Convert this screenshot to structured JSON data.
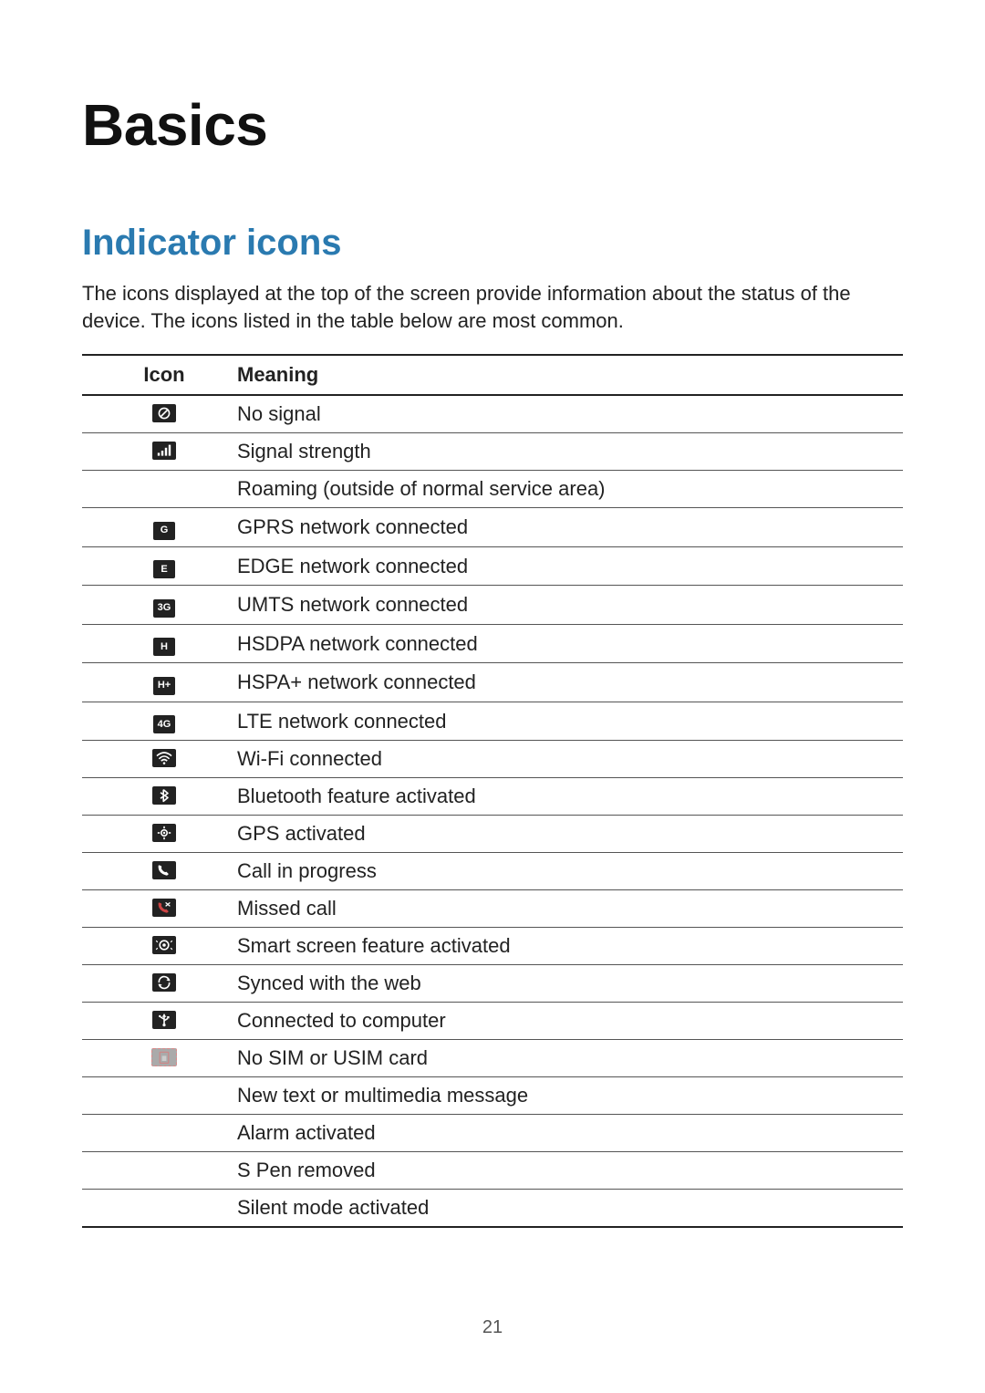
{
  "page_title": "Basics",
  "section_title": "Indicator icons",
  "section_title_color": "#2a7ab0",
  "intro_text": "The icons displayed at the top of the screen provide information about the status of the device. The icons listed in the table below are most common.",
  "table": {
    "columns": [
      "Icon",
      "Meaning"
    ],
    "header_fontweight": 700,
    "border_color": "#222222",
    "row_divider_color": "#555555",
    "rows": [
      {
        "icon": "no-signal",
        "icon_type": "svg",
        "meaning": "No signal"
      },
      {
        "icon": "signal",
        "icon_type": "svg",
        "meaning": "Signal strength"
      },
      {
        "icon": "",
        "icon_type": "none",
        "meaning": "Roaming (outside of normal service area)"
      },
      {
        "icon": "G",
        "icon_type": "text",
        "meaning": "GPRS network connected"
      },
      {
        "icon": "E",
        "icon_type": "text",
        "meaning": "EDGE network connected"
      },
      {
        "icon": "3G",
        "icon_type": "text",
        "meaning": "UMTS network connected"
      },
      {
        "icon": "H",
        "icon_type": "text",
        "meaning": "HSDPA network connected"
      },
      {
        "icon": "H+",
        "icon_type": "text",
        "meaning": "HSPA+ network connected"
      },
      {
        "icon": "4G",
        "icon_type": "text",
        "meaning": "LTE network connected"
      },
      {
        "icon": "wifi",
        "icon_type": "svg",
        "meaning": "Wi-Fi connected"
      },
      {
        "icon": "bluetooth",
        "icon_type": "svg",
        "meaning": "Bluetooth feature activated"
      },
      {
        "icon": "gps",
        "icon_type": "svg",
        "meaning": "GPS activated"
      },
      {
        "icon": "call",
        "icon_type": "svg",
        "meaning": "Call in progress"
      },
      {
        "icon": "missed-call",
        "icon_type": "svg",
        "meaning": "Missed call"
      },
      {
        "icon": "smart-screen",
        "icon_type": "svg",
        "meaning": "Smart screen feature activated"
      },
      {
        "icon": "sync",
        "icon_type": "svg",
        "meaning": "Synced with the web"
      },
      {
        "icon": "usb",
        "icon_type": "svg",
        "meaning": "Connected to computer"
      },
      {
        "icon": "no-sim",
        "icon_type": "svg-dim",
        "meaning": "No SIM or USIM card"
      },
      {
        "icon": "",
        "icon_type": "none",
        "meaning": "New text or multimedia message"
      },
      {
        "icon": "",
        "icon_type": "none",
        "meaning": "Alarm activated"
      },
      {
        "icon": "",
        "icon_type": "none",
        "meaning": "S Pen removed"
      },
      {
        "icon": "",
        "icon_type": "none",
        "meaning": "Silent mode activated"
      }
    ]
  },
  "page_number": "21",
  "fonts": {
    "title_size_pt": 48,
    "section_size_pt": 30,
    "body_size_pt": 16
  },
  "colors": {
    "background": "#ffffff",
    "text": "#222222",
    "accent": "#2a7ab0",
    "icon_badge_bg": "#222222"
  }
}
